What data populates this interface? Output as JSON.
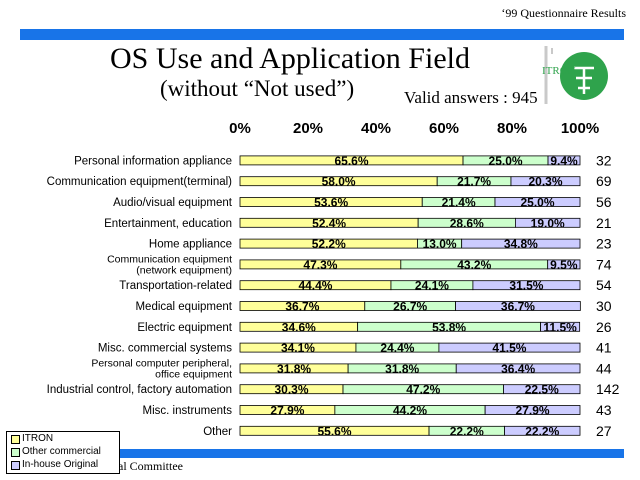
{
  "header_note": "‘99 Questionnaire Results",
  "title": "OS Use and Application Field",
  "subtitle": "(without “Not used”)",
  "valid_answers": "Valid answers : 945",
  "logo_text": "ITRON",
  "footer_text": "al Committee",
  "colors": {
    "band": "#1874e8",
    "itron": "#ffff99",
    "other_commercial": "#ccffcc",
    "inhouse": "#ccccff"
  },
  "chart_data": {
    "type": "bar",
    "stacked": "100%",
    "orientation": "horizontal",
    "title": "OS Use and Application Field",
    "xlim": [
      0,
      100
    ],
    "x_ticks": [
      "0%",
      "20%",
      "40%",
      "60%",
      "80%",
      "100%"
    ],
    "legend_position": "bottom-left",
    "categories": [
      "Personal information appliance",
      "Communication equipment(terminal)",
      "Audio/visual equipment",
      "Entertainment, education",
      "Home appliance",
      "Communication equipment (network equipment)",
      "Transportation-related",
      "Medical equipment",
      "Electric equipment",
      "Misc. commercial systems",
      "Personal computer peripheral, office equipment",
      "Industrial control, factory automation",
      "Misc. instruments",
      "Other"
    ],
    "category_lines": [
      [
        "Personal information appliance"
      ],
      [
        "Communication equipment(terminal)"
      ],
      [
        "Audio/visual equipment"
      ],
      [
        "Entertainment, education"
      ],
      [
        "Home appliance"
      ],
      [
        "Communication equipment",
        "(network equipment)"
      ],
      [
        "Transportation-related"
      ],
      [
        "Medical equipment"
      ],
      [
        "Electric equipment"
      ],
      [
        "Misc. commercial systems"
      ],
      [
        "Personal computer peripheral,",
        "office equipment"
      ],
      [
        "Industrial control, factory automation"
      ],
      [
        "Misc. instruments"
      ],
      [
        "Other"
      ]
    ],
    "counts": [
      "32",
      "69",
      "56",
      "21",
      "23",
      "74",
      "54",
      "30",
      "26",
      "41",
      "44",
      "142",
      "43",
      "27"
    ],
    "series": [
      {
        "name": "ITRON",
        "values": [
          65.6,
          58.0,
          53.6,
          52.4,
          52.2,
          47.3,
          44.4,
          36.7,
          34.6,
          34.1,
          31.8,
          30.3,
          27.9,
          55.6
        ],
        "labels": [
          "65.6%",
          "58.0%",
          "53.6%",
          "52.4%",
          "52.2%",
          "47.3%",
          "44.4%",
          "36.7%",
          "34.6%",
          "34.1%",
          "31.8%",
          "30.3%",
          "27.9%",
          "55.6%"
        ]
      },
      {
        "name": "Other commercial",
        "values": [
          25.0,
          21.7,
          21.4,
          28.6,
          13.0,
          43.2,
          24.1,
          26.7,
          53.8,
          24.4,
          31.8,
          47.2,
          44.2,
          22.2
        ],
        "labels": [
          "25.0%",
          "21.7%",
          "21.4%",
          "28.6%",
          "13.0%",
          "43.2%",
          "24.1%",
          "26.7%",
          "53.8%",
          "24.4%",
          "31.8%",
          "47.2%",
          "44.2%",
          "22.2%"
        ]
      },
      {
        "name": "In-house Original",
        "values": [
          9.4,
          20.3,
          25.0,
          19.0,
          34.8,
          9.5,
          31.5,
          36.7,
          11.5,
          41.5,
          36.4,
          22.5,
          27.9,
          22.2
        ],
        "labels": [
          "9.4%",
          "20.3%",
          "25.0%",
          "19.0%",
          "34.8%",
          "9.5%",
          "31.5%",
          "36.7%",
          "11.5%",
          "41.5%",
          "36.4%",
          "22.5%",
          "27.9%",
          "22.2%"
        ]
      }
    ]
  }
}
